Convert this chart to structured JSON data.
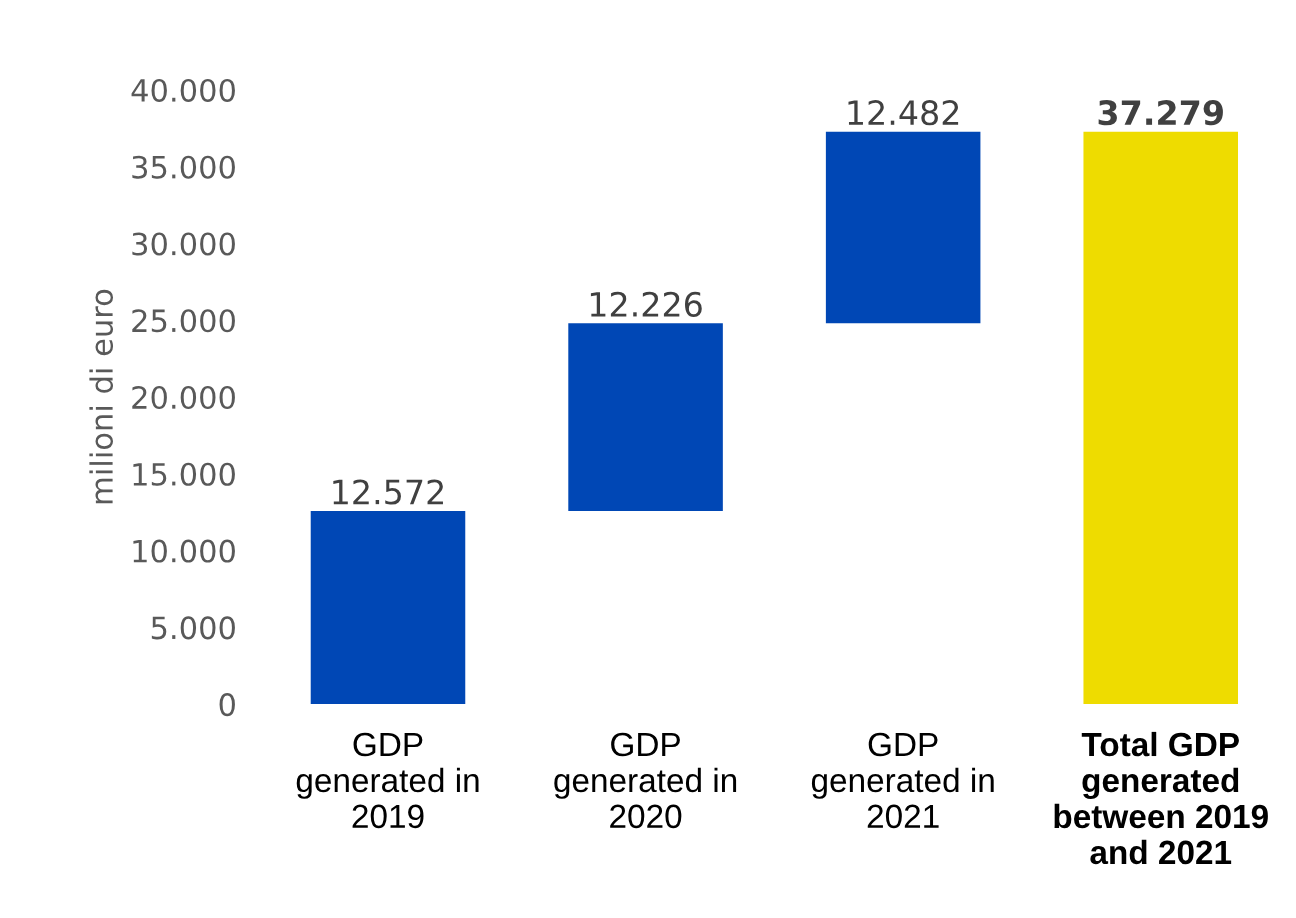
{
  "chart_data": {
    "type": "bar",
    "ylabel": "milioni di euro",
    "categories": [
      "GDP\ngenerated in\n2019",
      "GDP\ngenerated in\n2020",
      "GDP\ngenerated in\n2021",
      "Total GDP\ngenerated\nbetween 2019\nand 2021"
    ],
    "values": [
      12572,
      12226,
      12482,
      37279
    ],
    "base": [
      0,
      12572,
      24798,
      0
    ],
    "colors": [
      "#0047b5",
      "#0047b5",
      "#0047b5",
      "#eedc00"
    ],
    "value_labels": [
      "12.572",
      "12.226",
      "12.482",
      "37.279"
    ],
    "ylim": [
      0,
      40000
    ],
    "yticks": [
      {
        "value": 0,
        "label": "0"
      },
      {
        "value": 5000,
        "label": "5.000"
      },
      {
        "value": 10000,
        "label": "10.000"
      },
      {
        "value": 15000,
        "label": "15.000"
      },
      {
        "value": 20000,
        "label": "20.000"
      },
      {
        "value": 25000,
        "label": "25.000"
      },
      {
        "value": 30000,
        "label": "30.000"
      },
      {
        "value": 35000,
        "label": "35.000"
      },
      {
        "value": 40000,
        "label": "40.000"
      }
    ],
    "grid": false,
    "legend": false
  }
}
